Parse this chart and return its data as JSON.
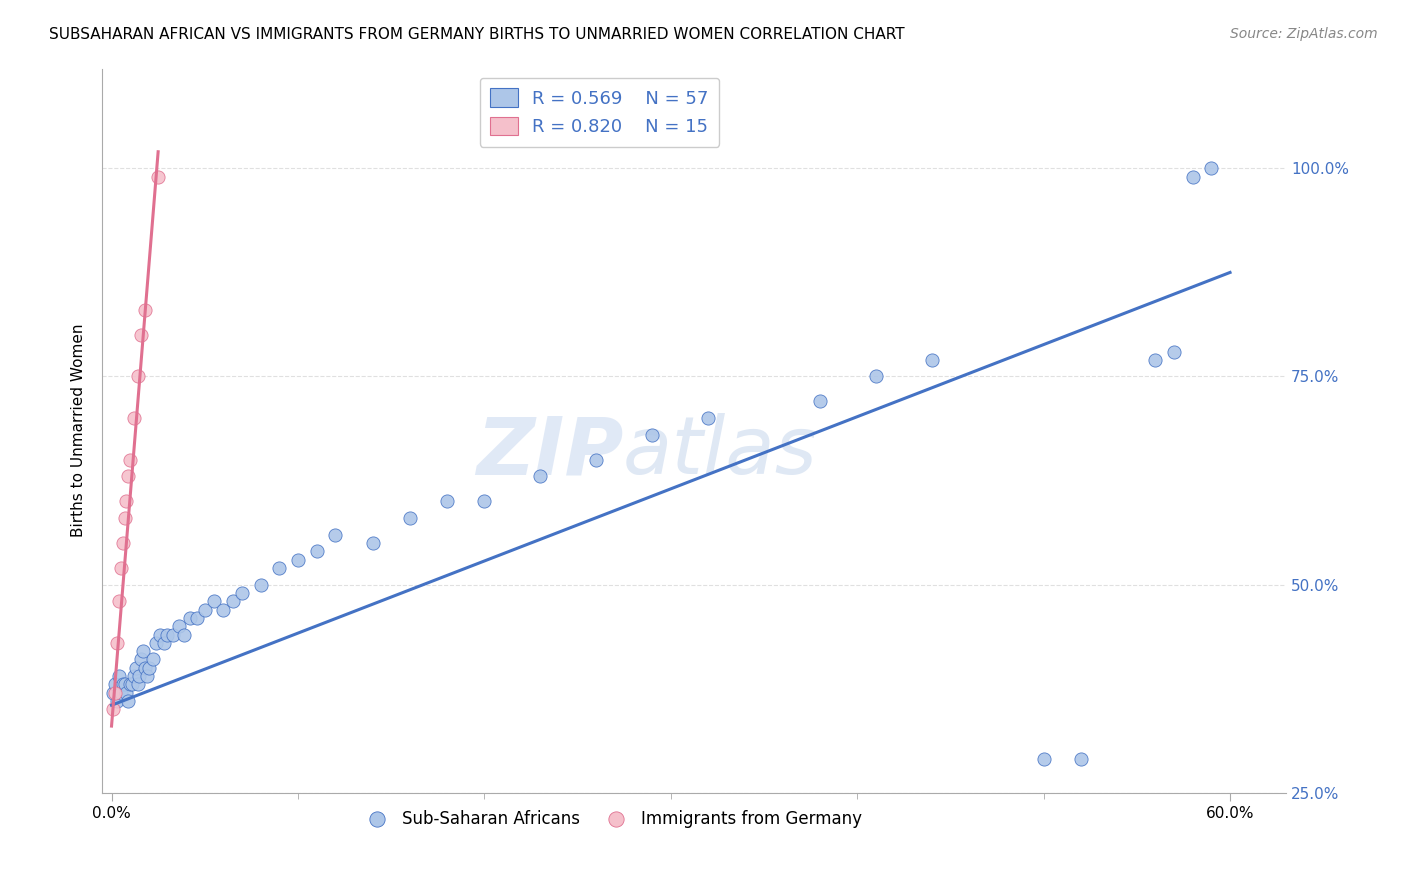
{
  "title": "SUBSAHARAN AFRICAN VS IMMIGRANTS FROM GERMANY BIRTHS TO UNMARRIED WOMEN CORRELATION CHART",
  "source": "Source: ZipAtlas.com",
  "xlabel_ticks_show": [
    "0.0%",
    "60.0%"
  ],
  "xlabel_ticks_pos": [
    0.0,
    0.6
  ],
  "xlabel_minor_ticks": [
    0.1,
    0.2,
    0.3,
    0.4,
    0.5
  ],
  "ylabel": "Births to Unmarried Women",
  "ylabel_ticks": [
    "25.0%",
    "50.0%",
    "75.0%",
    "100.0%"
  ],
  "ylabel_vals": [
    0.25,
    0.5,
    0.75,
    1.0
  ],
  "ylabel_grid_vals": [
    0.25,
    0.5,
    0.75,
    1.0
  ],
  "xlim": [
    -0.005,
    0.63
  ],
  "ylim": [
    0.28,
    1.12
  ],
  "blue_R": 0.569,
  "blue_N": 57,
  "pink_R": 0.82,
  "pink_N": 15,
  "blue_scatter_x": [
    0.001,
    0.002,
    0.003,
    0.004,
    0.005,
    0.006,
    0.007,
    0.008,
    0.009,
    0.01,
    0.011,
    0.012,
    0.013,
    0.014,
    0.015,
    0.016,
    0.017,
    0.018,
    0.019,
    0.02,
    0.022,
    0.024,
    0.026,
    0.028,
    0.03,
    0.033,
    0.036,
    0.039,
    0.042,
    0.046,
    0.05,
    0.055,
    0.06,
    0.065,
    0.07,
    0.08,
    0.09,
    0.1,
    0.11,
    0.12,
    0.14,
    0.16,
    0.18,
    0.2,
    0.23,
    0.26,
    0.29,
    0.32,
    0.38,
    0.41,
    0.44,
    0.5,
    0.52,
    0.56,
    0.57,
    0.58,
    0.59
  ],
  "blue_scatter_y": [
    0.37,
    0.38,
    0.36,
    0.39,
    0.37,
    0.38,
    0.38,
    0.37,
    0.36,
    0.38,
    0.38,
    0.39,
    0.4,
    0.38,
    0.39,
    0.41,
    0.42,
    0.4,
    0.39,
    0.4,
    0.41,
    0.43,
    0.44,
    0.43,
    0.44,
    0.44,
    0.45,
    0.44,
    0.46,
    0.46,
    0.47,
    0.48,
    0.47,
    0.48,
    0.49,
    0.5,
    0.52,
    0.53,
    0.54,
    0.56,
    0.55,
    0.58,
    0.6,
    0.6,
    0.63,
    0.65,
    0.68,
    0.7,
    0.72,
    0.75,
    0.77,
    0.29,
    0.29,
    0.77,
    0.78,
    0.99,
    1.0
  ],
  "pink_scatter_x": [
    0.001,
    0.002,
    0.003,
    0.004,
    0.005,
    0.006,
    0.007,
    0.008,
    0.009,
    0.01,
    0.012,
    0.014,
    0.016,
    0.018,
    0.025
  ],
  "pink_scatter_y": [
    0.35,
    0.37,
    0.43,
    0.48,
    0.52,
    0.55,
    0.58,
    0.6,
    0.63,
    0.65,
    0.7,
    0.75,
    0.8,
    0.83,
    0.99
  ],
  "blue_line_x": [
    0.0,
    0.6
  ],
  "blue_line_y": [
    0.355,
    0.875
  ],
  "pink_line_x": [
    0.0,
    0.025
  ],
  "pink_line_y": [
    0.33,
    1.02
  ],
  "blue_color": "#adc6e8",
  "blue_line_color": "#4472c4",
  "pink_color": "#f5c0cb",
  "pink_line_color": "#e07090",
  "legend_text_color": "#4472c4",
  "watermark_zip": "ZIP",
  "watermark_atlas": "atlas",
  "background_color": "#ffffff",
  "grid_color": "#e0e0e0"
}
